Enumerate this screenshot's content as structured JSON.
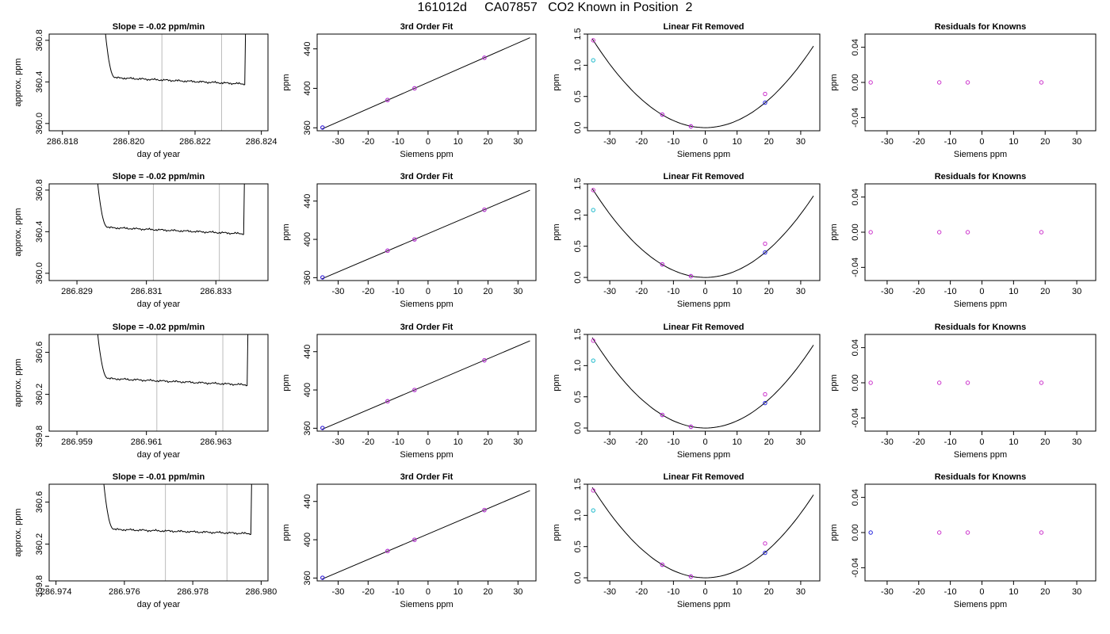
{
  "page_title": "161012d     CA07857   CO2 Known in Position  2",
  "colors": {
    "magenta": "#cc33cc",
    "blue": "#2222dd",
    "cyan": "#22bbcc",
    "grid": "#bbbbbb",
    "line": "#000000"
  },
  "chart_data": [
    {
      "type": "line",
      "title": "Slope =  -0.02  ppm/min",
      "xlabel": "day of year",
      "ylabel": "approx. ppm",
      "xlim": [
        286.8176,
        286.8242
      ],
      "ylim": [
        359.93,
        360.86
      ],
      "xticks": [
        286.818,
        286.82,
        286.822,
        286.824
      ],
      "xticklabels": [
        "286.818",
        "286.820",
        "286.822",
        "286.824"
      ],
      "yticks": [
        360.0,
        360.4,
        360.8
      ],
      "yticklabels": [
        "360.0",
        "360.4",
        "360.8"
      ],
      "vlines": [
        286.821,
        286.8228
      ],
      "trace": {
        "x_start": 286.8193,
        "x_end": 286.8235,
        "level_start": 360.44,
        "level_end": 360.38,
        "spike_top": 360.86
      },
      "slope_label": "Slope =  -0.02  ppm/min"
    },
    {
      "type": "line",
      "title": "3rd Order Fit",
      "xlabel": "Siemens ppm",
      "ylabel": "ppm",
      "xlim": [
        -37,
        36
      ],
      "ylim": [
        357,
        455
      ],
      "xticks": [
        -30,
        -20,
        -10,
        0,
        10,
        20,
        30
      ],
      "xticklabels": [
        "-30",
        "-20",
        "-10",
        "0",
        "10",
        "20",
        "30"
      ],
      "yticks": [
        360,
        400,
        440
      ],
      "yticklabels": [
        "360",
        "400",
        "440"
      ],
      "fit": {
        "slope": 1.333,
        "intercept": 406.0,
        "x_range": [
          -35.5,
          34
        ]
      },
      "points": [
        {
          "x": -35.2,
          "y": 360.3,
          "color": "magenta"
        },
        {
          "x": -35.2,
          "y": 360.3,
          "color": "blue"
        },
        {
          "x": -13.5,
          "y": 388.2,
          "color": "blue"
        },
        {
          "x": -13.5,
          "y": 388.2,
          "color": "magenta"
        },
        {
          "x": -4.5,
          "y": 400.0,
          "color": "blue"
        },
        {
          "x": -4.5,
          "y": 400.0,
          "color": "magenta"
        },
        {
          "x": 18.8,
          "y": 431.0,
          "color": "blue"
        },
        {
          "x": 18.8,
          "y": 431.0,
          "color": "magenta"
        }
      ]
    },
    {
      "type": "line",
      "title": "Linear Fit Removed",
      "xlabel": "Siemens ppm",
      "ylabel": "ppm",
      "xlim": [
        -37,
        36
      ],
      "ylim": [
        -0.05,
        1.5
      ],
      "xticks": [
        -30,
        -20,
        -10,
        0,
        10,
        20,
        30
      ],
      "xticklabels": [
        "-30",
        "-20",
        "-10",
        "0",
        "10",
        "20",
        "30"
      ],
      "yticks": [
        0.0,
        0.5,
        1.0,
        1.5
      ],
      "yticklabels": [
        "0.0",
        "0.5",
        "1.0",
        "1.5"
      ],
      "curve": {
        "a": 0.00113,
        "x_range": [
          -35.5,
          34
        ]
      },
      "points": [
        {
          "x": -35.2,
          "y": 1.4,
          "color": "magenta"
        },
        {
          "x": -35.2,
          "y": 1.08,
          "color": "cyan"
        },
        {
          "x": -13.5,
          "y": 0.21,
          "color": "blue"
        },
        {
          "x": -13.5,
          "y": 0.21,
          "color": "magenta"
        },
        {
          "x": -4.5,
          "y": 0.02,
          "color": "blue"
        },
        {
          "x": -4.5,
          "y": 0.02,
          "color": "magenta"
        },
        {
          "x": 18.8,
          "y": 0.4,
          "color": "blue"
        },
        {
          "x": 18.8,
          "y": 0.54,
          "color": "magenta"
        }
      ]
    },
    {
      "type": "scatter",
      "title": "Residuals for Knowns",
      "xlabel": "Siemens ppm",
      "ylabel": "ppm",
      "xlim": [
        -37,
        36
      ],
      "ylim": [
        -0.055,
        0.055
      ],
      "xticks": [
        -30,
        -20,
        -10,
        0,
        10,
        20,
        30
      ],
      "xticklabels": [
        "-30",
        "-20",
        "-10",
        "0",
        "10",
        "20",
        "30"
      ],
      "yticks": [
        -0.04,
        0.0,
        0.04
      ],
      "yticklabels": [
        "-0.04",
        "0.00",
        "0.04"
      ],
      "points": [
        {
          "x": -35.2,
          "y": 0.0,
          "color": "magenta"
        },
        {
          "x": -13.5,
          "y": 0.0,
          "color": "magenta"
        },
        {
          "x": -4.5,
          "y": 0.0,
          "color": "magenta"
        },
        {
          "x": 18.8,
          "y": 0.0,
          "color": "magenta"
        }
      ]
    },
    {
      "type": "line",
      "title": "Slope =  -0.02  ppm/min",
      "xlabel": "day of year",
      "ylabel": "approx. ppm",
      "xlim": [
        286.8282,
        286.8345
      ],
      "ylim": [
        359.93,
        360.86
      ],
      "xticks": [
        286.829,
        286.831,
        286.833
      ],
      "xticklabels": [
        "286.829",
        "286.831",
        "286.833"
      ],
      "yticks": [
        360.0,
        360.4,
        360.8
      ],
      "yticklabels": [
        "360.0",
        "360.4",
        "360.8"
      ],
      "vlines": [
        286.8312,
        286.8331
      ],
      "trace": {
        "x_start": 286.8296,
        "x_end": 286.8338,
        "level_start": 360.44,
        "level_end": 360.38,
        "spike_top": 360.86
      },
      "slope_label": "Slope =  -0.02  ppm/min"
    },
    {
      "type": "line",
      "title": "3rd Order Fit",
      "xlabel": "Siemens ppm",
      "ylabel": "ppm",
      "xlim": [
        -37,
        36
      ],
      "ylim": [
        357,
        458
      ],
      "xticks": [
        -30,
        -20,
        -10,
        0,
        10,
        20,
        30
      ],
      "xticklabels": [
        "-30",
        "-20",
        "-10",
        "0",
        "10",
        "20",
        "30"
      ],
      "yticks": [
        360,
        400,
        440
      ],
      "yticklabels": [
        "360",
        "400",
        "440"
      ],
      "fit": {
        "slope": 1.333,
        "intercept": 406.0,
        "x_range": [
          -35.5,
          34
        ]
      },
      "points": [
        {
          "x": -35.2,
          "y": 360.3,
          "color": "magenta"
        },
        {
          "x": -35.2,
          "y": 360.3,
          "color": "blue"
        },
        {
          "x": -13.5,
          "y": 388.2,
          "color": "blue"
        },
        {
          "x": -13.5,
          "y": 388.2,
          "color": "magenta"
        },
        {
          "x": -4.5,
          "y": 400.0,
          "color": "blue"
        },
        {
          "x": -4.5,
          "y": 400.0,
          "color": "magenta"
        },
        {
          "x": 18.8,
          "y": 431.0,
          "color": "blue"
        },
        {
          "x": 18.8,
          "y": 431.0,
          "color": "magenta"
        }
      ]
    },
    {
      "type": "line",
      "title": "Linear Fit Removed",
      "xlabel": "Siemens ppm",
      "ylabel": "ppm",
      "xlim": [
        -37,
        36
      ],
      "ylim": [
        -0.05,
        1.5
      ],
      "xticks": [
        -30,
        -20,
        -10,
        0,
        10,
        20,
        30
      ],
      "xticklabels": [
        "-30",
        "-20",
        "-10",
        "0",
        "10",
        "20",
        "30"
      ],
      "yticks": [
        0.0,
        0.5,
        1.0,
        1.5
      ],
      "yticklabels": [
        "0.0",
        "0.5",
        "1.0",
        "1.5"
      ],
      "curve": {
        "a": 0.00113,
        "x_range": [
          -35.5,
          34
        ]
      },
      "points": [
        {
          "x": -35.2,
          "y": 1.4,
          "color": "magenta"
        },
        {
          "x": -35.2,
          "y": 1.08,
          "color": "cyan"
        },
        {
          "x": -13.5,
          "y": 0.21,
          "color": "blue"
        },
        {
          "x": -13.5,
          "y": 0.21,
          "color": "magenta"
        },
        {
          "x": -4.5,
          "y": 0.02,
          "color": "blue"
        },
        {
          "x": -4.5,
          "y": 0.02,
          "color": "magenta"
        },
        {
          "x": 18.8,
          "y": 0.4,
          "color": "blue"
        },
        {
          "x": 18.8,
          "y": 0.54,
          "color": "magenta"
        }
      ]
    },
    {
      "type": "scatter",
      "title": "Residuals for Knowns",
      "xlabel": "Siemens ppm",
      "ylabel": "ppm",
      "xlim": [
        -37,
        36
      ],
      "ylim": [
        -0.055,
        0.055
      ],
      "xticks": [
        -30,
        -20,
        -10,
        0,
        10,
        20,
        30
      ],
      "xticklabels": [
        "-30",
        "-20",
        "-10",
        "0",
        "10",
        "20",
        "30"
      ],
      "yticks": [
        -0.04,
        0.0,
        0.04
      ],
      "yticklabels": [
        "-0.04",
        "0.00",
        "0.04"
      ],
      "points": [
        {
          "x": -35.2,
          "y": 0.0,
          "color": "magenta"
        },
        {
          "x": -13.5,
          "y": 0.0,
          "color": "magenta"
        },
        {
          "x": -4.5,
          "y": 0.0,
          "color": "magenta"
        },
        {
          "x": 18.8,
          "y": 0.0,
          "color": "magenta"
        }
      ]
    },
    {
      "type": "line",
      "title": "Slope =  -0.02  ppm/min",
      "xlabel": "day of year",
      "ylabel": "approx. ppm",
      "xlim": [
        286.9582,
        286.9645
      ],
      "ylim": [
        359.85,
        360.77
      ],
      "xticks": [
        286.959,
        286.961,
        286.963
      ],
      "xticklabels": [
        "286.959",
        "286.961",
        "286.963"
      ],
      "yticks": [
        359.8,
        360.2,
        360.6
      ],
      "yticklabels": [
        "359.8",
        "360.2",
        "360.6"
      ],
      "vlines": [
        286.9613,
        286.9632
      ],
      "trace": {
        "x_start": 286.9596,
        "x_end": 286.9639,
        "level_start": 360.35,
        "level_end": 360.29,
        "spike_top": 360.77
      },
      "slope_label": "Slope =  -0.02  ppm/min"
    },
    {
      "type": "line",
      "title": "3rd Order Fit",
      "xlabel": "Siemens ppm",
      "ylabel": "ppm",
      "xlim": [
        -37,
        36
      ],
      "ylim": [
        357,
        458
      ],
      "xticks": [
        -30,
        -20,
        -10,
        0,
        10,
        20,
        30
      ],
      "xticklabels": [
        "-30",
        "-20",
        "-10",
        "0",
        "10",
        "20",
        "30"
      ],
      "yticks": [
        360,
        400,
        440
      ],
      "yticklabels": [
        "360",
        "400",
        "440"
      ],
      "fit": {
        "slope": 1.333,
        "intercept": 406.0,
        "x_range": [
          -35.5,
          34
        ]
      },
      "points": [
        {
          "x": -35.2,
          "y": 360.3,
          "color": "magenta"
        },
        {
          "x": -35.2,
          "y": 360.3,
          "color": "blue"
        },
        {
          "x": -13.5,
          "y": 388.2,
          "color": "blue"
        },
        {
          "x": -13.5,
          "y": 388.2,
          "color": "magenta"
        },
        {
          "x": -4.5,
          "y": 400.0,
          "color": "blue"
        },
        {
          "x": -4.5,
          "y": 400.0,
          "color": "magenta"
        },
        {
          "x": 18.8,
          "y": 431.0,
          "color": "blue"
        },
        {
          "x": 18.8,
          "y": 431.0,
          "color": "magenta"
        }
      ]
    },
    {
      "type": "line",
      "title": "Linear Fit Removed",
      "xlabel": "Siemens ppm",
      "ylabel": "ppm",
      "xlim": [
        -37,
        36
      ],
      "ylim": [
        -0.05,
        1.5
      ],
      "xticks": [
        -30,
        -20,
        -10,
        0,
        10,
        20,
        30
      ],
      "xticklabels": [
        "-30",
        "-20",
        "-10",
        "0",
        "10",
        "20",
        "30"
      ],
      "yticks": [
        0.0,
        0.5,
        1.0,
        1.5
      ],
      "yticklabels": [
        "0.0",
        "0.5",
        "1.0",
        "1.5"
      ],
      "curve": {
        "a": 0.00115,
        "x_range": [
          -35.5,
          34
        ]
      },
      "points": [
        {
          "x": -35.2,
          "y": 1.4,
          "color": "magenta"
        },
        {
          "x": -35.2,
          "y": 1.08,
          "color": "cyan"
        },
        {
          "x": -13.5,
          "y": 0.21,
          "color": "blue"
        },
        {
          "x": -13.5,
          "y": 0.21,
          "color": "magenta"
        },
        {
          "x": -4.5,
          "y": 0.02,
          "color": "blue"
        },
        {
          "x": -4.5,
          "y": 0.02,
          "color": "magenta"
        },
        {
          "x": 18.8,
          "y": 0.4,
          "color": "blue"
        },
        {
          "x": 18.8,
          "y": 0.54,
          "color": "magenta"
        }
      ]
    },
    {
      "type": "scatter",
      "title": "Residuals for Knowns",
      "xlabel": "Siemens ppm",
      "ylabel": "ppm",
      "xlim": [
        -37,
        36
      ],
      "ylim": [
        -0.055,
        0.055
      ],
      "xticks": [
        -30,
        -20,
        -10,
        0,
        10,
        20,
        30
      ],
      "xticklabels": [
        "-30",
        "-20",
        "-10",
        "0",
        "10",
        "20",
        "30"
      ],
      "yticks": [
        -0.04,
        0.0,
        0.04
      ],
      "yticklabels": [
        "-0.04",
        "0.00",
        "0.04"
      ],
      "points": [
        {
          "x": -35.2,
          "y": 0.0,
          "color": "magenta"
        },
        {
          "x": -13.5,
          "y": 0.0,
          "color": "magenta"
        },
        {
          "x": -4.5,
          "y": 0.0,
          "color": "magenta"
        },
        {
          "x": 18.8,
          "y": 0.0,
          "color": "magenta"
        }
      ]
    },
    {
      "type": "line",
      "title": "Slope =  -0.01  ppm/min",
      "xlabel": "day of year",
      "ylabel": "approx. ppm",
      "xlim": [
        286.9738,
        286.9802
      ],
      "ylim": [
        359.85,
        360.77
      ],
      "xticks": [
        286.974,
        286.976,
        286.978,
        286.98
      ],
      "xticklabels": [
        "286.974",
        "286.976",
        "286.978",
        "286.980"
      ],
      "yticks": [
        359.8,
        360.2,
        360.6
      ],
      "yticklabels": [
        "359.8",
        "360.2",
        "360.6"
      ],
      "vlines": [
        286.9772,
        286.979
      ],
      "trace": {
        "x_start": 286.9754,
        "x_end": 286.9797,
        "level_start": 360.34,
        "level_end": 360.3,
        "spike_top": 360.77
      },
      "slope_label": "Slope =  -0.01  ppm/min"
    },
    {
      "type": "line",
      "title": "3rd Order Fit",
      "xlabel": "Siemens ppm",
      "ylabel": "ppm",
      "xlim": [
        -37,
        36
      ],
      "ylim": [
        357,
        458
      ],
      "xticks": [
        -30,
        -20,
        -10,
        0,
        10,
        20,
        30
      ],
      "xticklabels": [
        "-30",
        "-20",
        "-10",
        "0",
        "10",
        "20",
        "30"
      ],
      "yticks": [
        360,
        400,
        440
      ],
      "yticklabels": [
        "360",
        "400",
        "440"
      ],
      "fit": {
        "slope": 1.333,
        "intercept": 406.0,
        "x_range": [
          -35.5,
          34
        ]
      },
      "points": [
        {
          "x": -35.2,
          "y": 360.3,
          "color": "magenta"
        },
        {
          "x": -35.2,
          "y": 360.3,
          "color": "blue"
        },
        {
          "x": -13.5,
          "y": 388.2,
          "color": "blue"
        },
        {
          "x": -13.5,
          "y": 388.2,
          "color": "magenta"
        },
        {
          "x": -4.5,
          "y": 400.0,
          "color": "blue"
        },
        {
          "x": -4.5,
          "y": 400.0,
          "color": "magenta"
        },
        {
          "x": 18.8,
          "y": 431.0,
          "color": "blue"
        },
        {
          "x": 18.8,
          "y": 431.0,
          "color": "magenta"
        }
      ]
    },
    {
      "type": "line",
      "title": "Linear Fit Removed",
      "xlabel": "Siemens ppm",
      "ylabel": "ppm",
      "xlim": [
        -37,
        36
      ],
      "ylim": [
        -0.05,
        1.5
      ],
      "xticks": [
        -30,
        -20,
        -10,
        0,
        10,
        20,
        30
      ],
      "xticklabels": [
        "-30",
        "-20",
        "-10",
        "0",
        "10",
        "20",
        "30"
      ],
      "yticks": [
        0.0,
        0.5,
        1.0,
        1.5
      ],
      "yticklabels": [
        "0.0",
        "0.5",
        "1.0",
        "1.5"
      ],
      "curve": {
        "a": 0.00115,
        "x_range": [
          -35.5,
          34
        ]
      },
      "points": [
        {
          "x": -35.2,
          "y": 1.4,
          "color": "magenta"
        },
        {
          "x": -35.2,
          "y": 1.08,
          "color": "cyan"
        },
        {
          "x": -13.5,
          "y": 0.21,
          "color": "blue"
        },
        {
          "x": -13.5,
          "y": 0.21,
          "color": "magenta"
        },
        {
          "x": -4.5,
          "y": 0.02,
          "color": "blue"
        },
        {
          "x": -4.5,
          "y": 0.02,
          "color": "magenta"
        },
        {
          "x": 18.8,
          "y": 0.4,
          "color": "blue"
        },
        {
          "x": 18.8,
          "y": 0.55,
          "color": "magenta"
        }
      ]
    },
    {
      "type": "scatter",
      "title": "Residuals for Knowns",
      "xlabel": "Siemens ppm",
      "ylabel": "ppm",
      "xlim": [
        -37,
        36
      ],
      "ylim": [
        -0.055,
        0.055
      ],
      "xticks": [
        -30,
        -20,
        -10,
        0,
        10,
        20,
        30
      ],
      "xticklabels": [
        "-30",
        "-20",
        "-10",
        "0",
        "10",
        "20",
        "30"
      ],
      "yticks": [
        -0.04,
        0.0,
        0.04
      ],
      "yticklabels": [
        "-0.04",
        "0.00",
        "0.04"
      ],
      "points": [
        {
          "x": -35.2,
          "y": 0.0,
          "color": "blue"
        },
        {
          "x": -13.5,
          "y": 0.0,
          "color": "magenta"
        },
        {
          "x": -4.5,
          "y": 0.0,
          "color": "magenta"
        },
        {
          "x": 18.8,
          "y": 0.0,
          "color": "magenta"
        }
      ]
    }
  ]
}
